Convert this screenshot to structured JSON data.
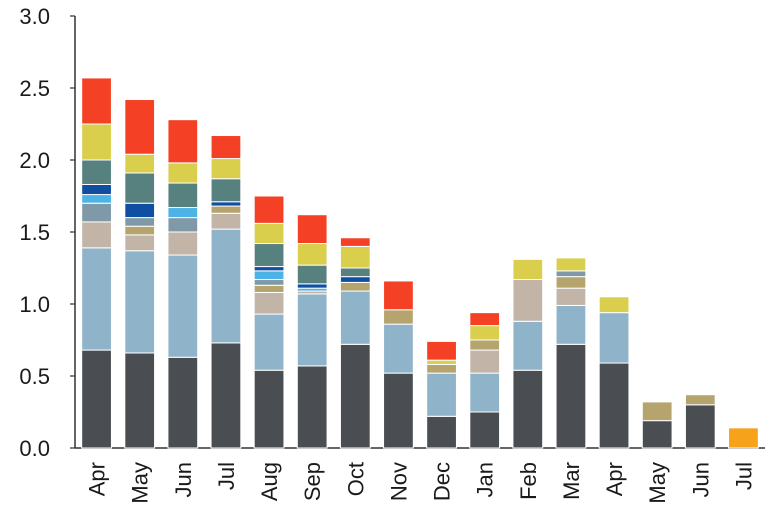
{
  "chart_data": {
    "type": "bar",
    "stacked": true,
    "categories": [
      "Apr",
      "May",
      "Jun",
      "Jul",
      "Aug",
      "Sep",
      "Oct",
      "Nov",
      "Dec",
      "Jan",
      "Feb",
      "Mar",
      "Apr",
      "May",
      "Jun",
      "Jul"
    ],
    "ylim": [
      0,
      3.0
    ],
    "yticks": [
      "0.0",
      "0.5",
      "1.0",
      "1.5",
      "2.0",
      "2.5",
      "3.0"
    ],
    "grid": false,
    "legend": "none",
    "series": [
      {
        "color": "#4a4d52",
        "values": [
          0.68,
          0.66,
          0.63,
          0.73,
          0.54,
          0.57,
          0.72,
          0.52,
          0.22,
          0.25,
          0.54,
          0.72,
          0.59,
          0.19,
          0.3,
          0
        ]
      },
      {
        "color": "#8fb4c9",
        "values": [
          0.71,
          0.71,
          0.71,
          0.79,
          0.39,
          0.5,
          0.37,
          0.34,
          0.3,
          0.27,
          0.34,
          0.27,
          0.35,
          0,
          0,
          0
        ]
      },
      {
        "color": "#c2b5a7",
        "values": [
          0.18,
          0.11,
          0.16,
          0.11,
          0.15,
          0.02,
          0,
          0,
          0,
          0.16,
          0.29,
          0.12,
          0,
          0,
          0,
          0
        ]
      },
      {
        "color": "#b5a46e",
        "values": [
          0,
          0.06,
          0,
          0.05,
          0.05,
          0,
          0.06,
          0.1,
          0.06,
          0.07,
          0,
          0.08,
          0,
          0.13,
          0.07,
          0
        ]
      },
      {
        "color": "#7f99a8",
        "values": [
          0.13,
          0.06,
          0.1,
          0,
          0.04,
          0,
          0,
          0,
          0,
          0,
          0,
          0.04,
          0,
          0,
          0,
          0
        ]
      },
      {
        "color": "#4db3e6",
        "values": [
          0.06,
          0,
          0.07,
          0,
          0.06,
          0.02,
          0,
          0,
          0,
          0,
          0,
          0,
          0,
          0,
          0,
          0
        ]
      },
      {
        "color": "#0f4ea0",
        "values": [
          0.07,
          0.1,
          0,
          0.03,
          0.03,
          0.03,
          0.04,
          0,
          0,
          0,
          0,
          0,
          0,
          0,
          0,
          0
        ]
      },
      {
        "color": "#57817f",
        "values": [
          0.17,
          0.21,
          0.17,
          0.16,
          0.16,
          0.13,
          0.06,
          0,
          0,
          0,
          0,
          0,
          0,
          0,
          0,
          0
        ]
      },
      {
        "color": "#d9cf4c",
        "values": [
          0.25,
          0.13,
          0.14,
          0.14,
          0.14,
          0.15,
          0.15,
          0,
          0.03,
          0.1,
          0.14,
          0.09,
          0.11,
          0,
          0,
          0
        ]
      },
      {
        "color": "#f44126",
        "values": [
          0.32,
          0.38,
          0.3,
          0.16,
          0.19,
          0.2,
          0.06,
          0.2,
          0.13,
          0.09,
          0,
          0,
          0,
          0,
          0,
          0
        ]
      },
      {
        "color": "#f7a21b",
        "values": [
          0,
          0,
          0,
          0,
          0,
          0,
          0,
          0,
          0,
          0,
          0,
          0,
          0,
          0,
          0,
          0.14
        ]
      }
    ]
  }
}
